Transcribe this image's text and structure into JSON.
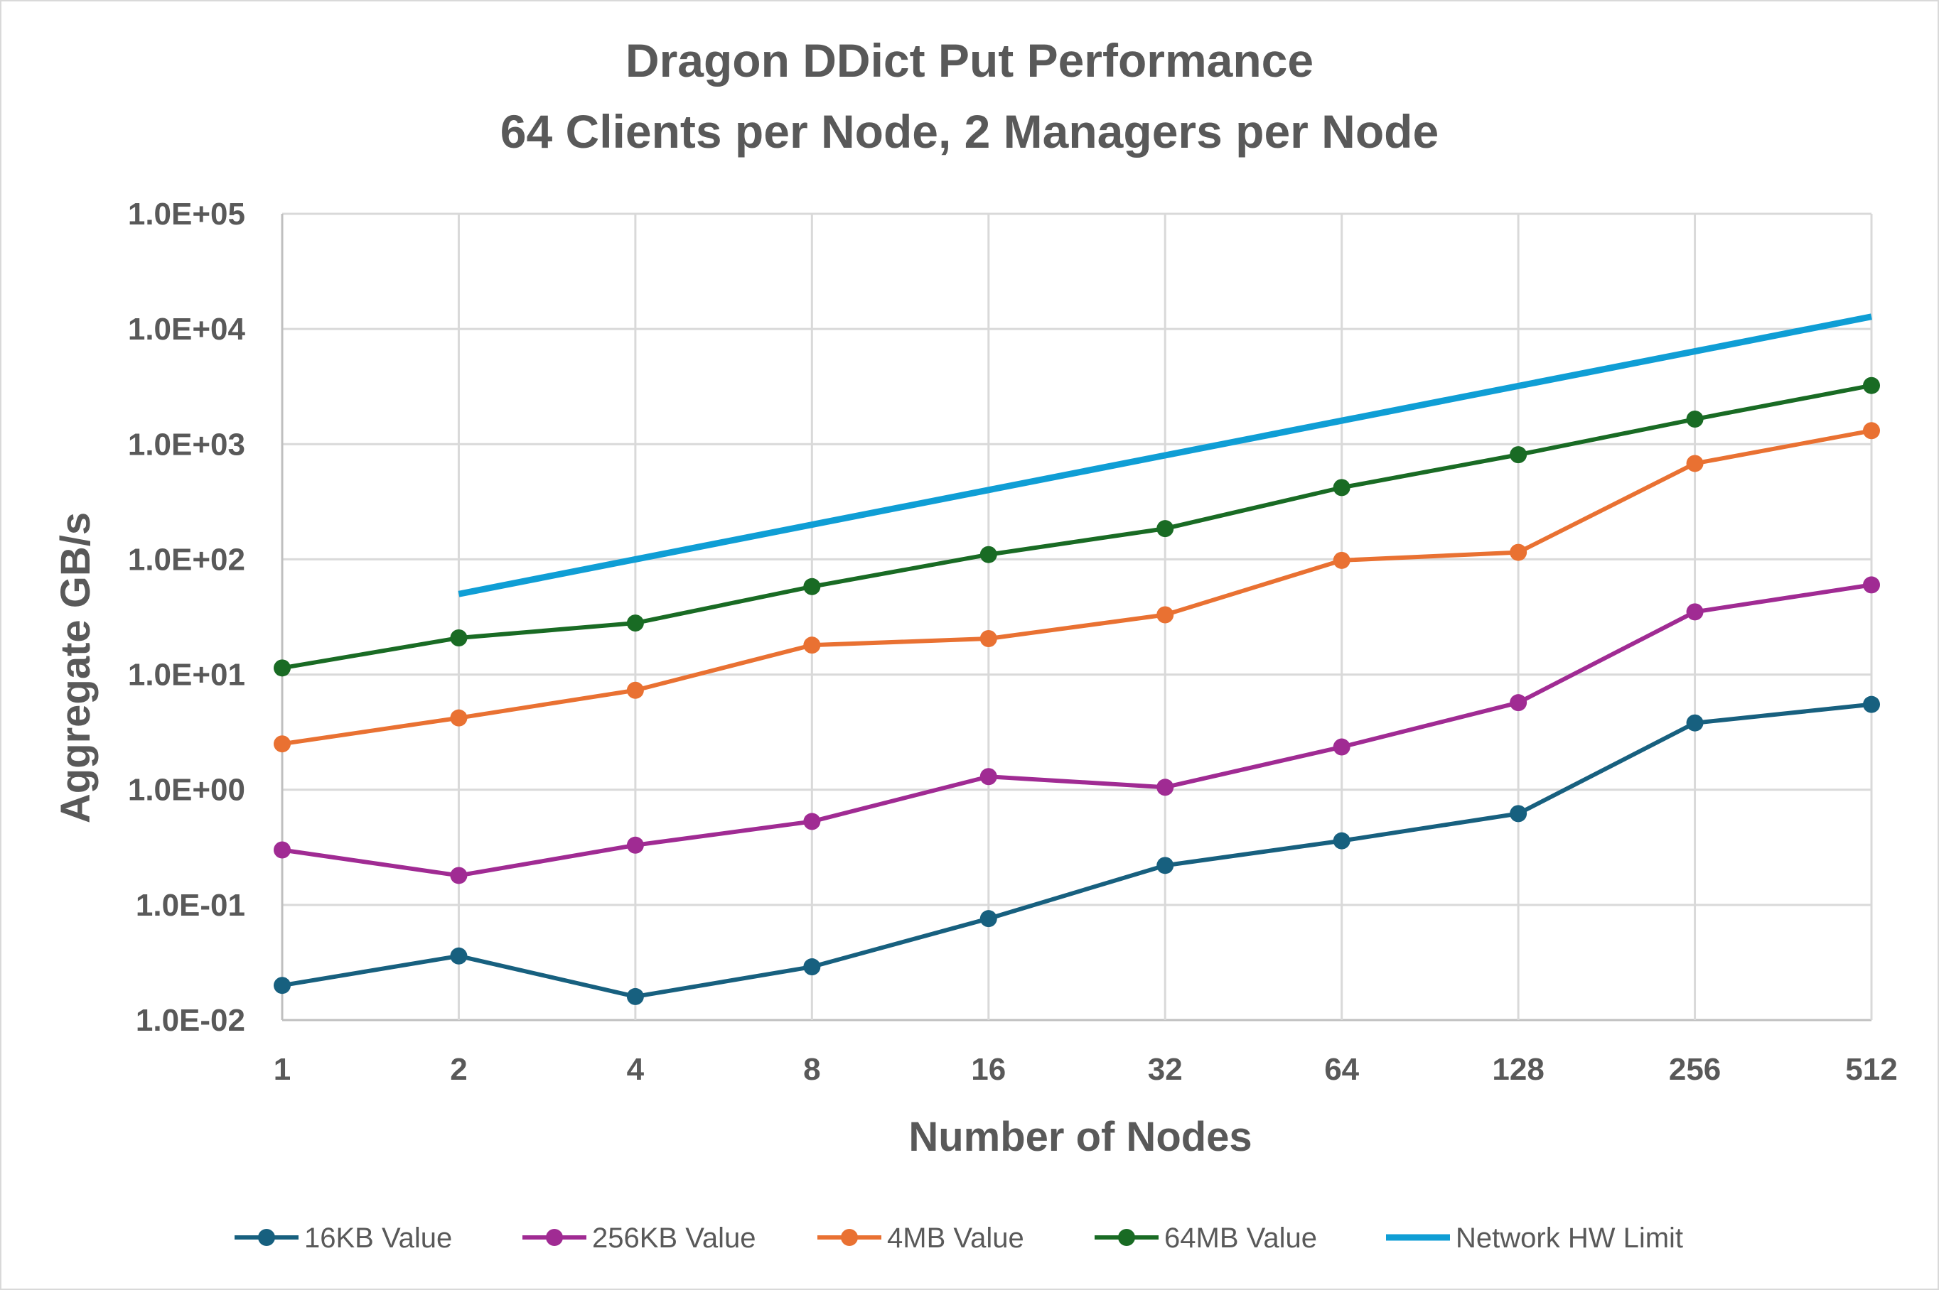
{
  "chart_data": {
    "type": "line",
    "title": "Dragon DDict Put Performance",
    "subtitle": "64 Clients per Node, 2 Managers per Node",
    "xlabel": "Number of Nodes",
    "ylabel": "Aggregate GB/s",
    "x_scale": "categorical",
    "y_scale": "log",
    "ylim": [
      0.01,
      100000
    ],
    "grid": true,
    "legend_position": "bottom",
    "categories": [
      "1",
      "2",
      "4",
      "8",
      "16",
      "32",
      "64",
      "128",
      "256",
      "512"
    ],
    "y_tick_labels": [
      "1.0E-02",
      "1.0E-01",
      "1.0E+00",
      "1.0E+01",
      "1.0E+02",
      "1.0E+03",
      "1.0E+04",
      "1.0E+05"
    ],
    "y_tick_values": [
      0.01,
      0.1,
      1,
      10,
      100,
      1000,
      10000,
      100000
    ],
    "series": [
      {
        "name": "16KB Value",
        "color": "#17607f",
        "markers": true,
        "values": [
          0.02,
          0.036,
          0.016,
          0.029,
          0.076,
          0.22,
          0.36,
          0.62,
          3.8,
          5.5
        ]
      },
      {
        "name": "256KB Value",
        "color": "#a02b93",
        "markers": true,
        "values": [
          0.3,
          0.18,
          0.33,
          0.53,
          1.3,
          1.05,
          2.35,
          5.7,
          35,
          60
        ]
      },
      {
        "name": "4MB Value",
        "color": "#e97132",
        "markers": true,
        "values": [
          2.5,
          4.2,
          7.3,
          18,
          20.5,
          33,
          98,
          115,
          680,
          1310
        ]
      },
      {
        "name": "64MB Value",
        "color": "#196b24",
        "markers": true,
        "values": [
          11.4,
          20.8,
          28,
          58,
          110,
          185,
          420,
          810,
          1650,
          3230
        ]
      },
      {
        "name": "Network HW Limit",
        "color": "#0f9ed5",
        "markers": false,
        "values": [
          null,
          50,
          100,
          200,
          400,
          800,
          1600,
          3200,
          6400,
          12800
        ]
      }
    ]
  }
}
